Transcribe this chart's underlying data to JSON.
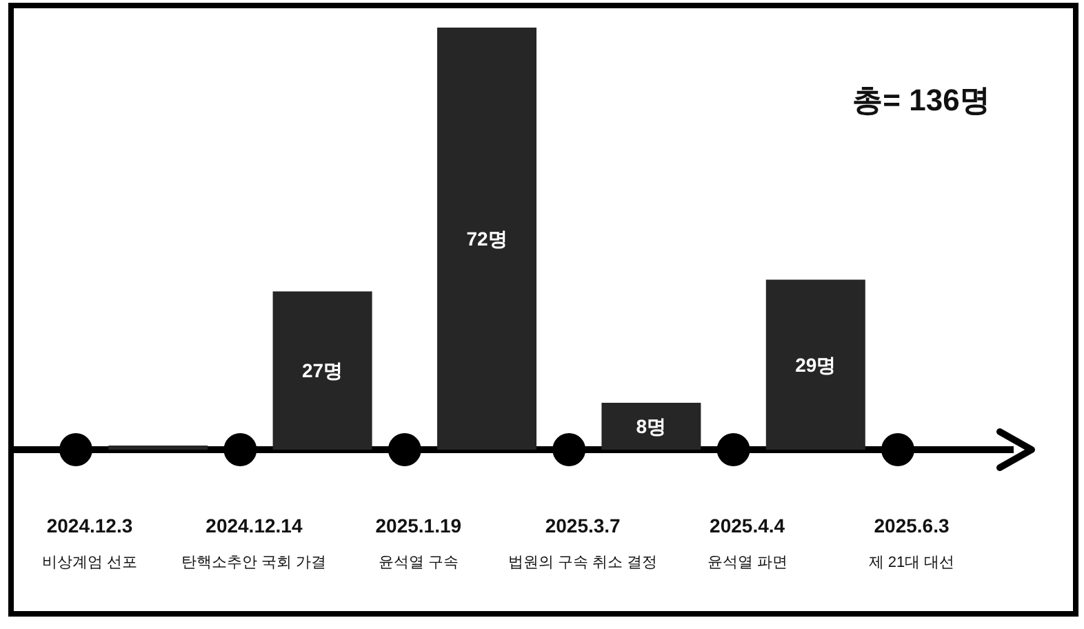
{
  "chart_data": {
    "type": "bar",
    "title": "총= 136명",
    "categories": [
      null,
      null,
      null,
      null,
      null
    ],
    "values": [
      0,
      27,
      72,
      8,
      29
    ],
    "value_labels": [
      null,
      "27명",
      "72명",
      "8명",
      "29명"
    ],
    "color": "#262626",
    "annotations": [
      "2024.12.3",
      "비상계엄 선포",
      "2024.12.14",
      "탄핵소추안 국회 가결",
      "2025.1.19",
      "윤석열 구속",
      "2025.3.7",
      "법원의 구속 취소 결정",
      "2025.4.4",
      "윤석열 파면",
      "2025.6.3",
      "제 21대 대선"
    ]
  }
}
